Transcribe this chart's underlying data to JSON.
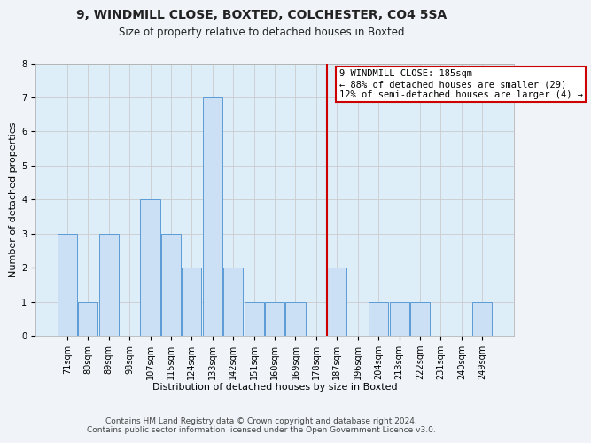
{
  "title": "9, WINDMILL CLOSE, BOXTED, COLCHESTER, CO4 5SA",
  "subtitle": "Size of property relative to detached houses in Boxted",
  "xlabel": "Distribution of detached houses by size in Boxted",
  "ylabel": "Number of detached properties",
  "bar_labels": [
    "71sqm",
    "80sqm",
    "89sqm",
    "98sqm",
    "107sqm",
    "115sqm",
    "124sqm",
    "133sqm",
    "142sqm",
    "151sqm",
    "160sqm",
    "169sqm",
    "178sqm",
    "187sqm",
    "196sqm",
    "204sqm",
    "213sqm",
    "222sqm",
    "231sqm",
    "240sqm",
    "249sqm"
  ],
  "bar_values": [
    3,
    1,
    3,
    0,
    4,
    3,
    2,
    7,
    2,
    1,
    1,
    1,
    0,
    2,
    0,
    1,
    1,
    1,
    0,
    0,
    1
  ],
  "bar_color": "#cce0f5",
  "bar_edge_color": "#5b9bd5",
  "vline_color": "#cc0000",
  "vline_pos": 12.5,
  "annotation_box_text": "9 WINDMILL CLOSE: 185sqm\n← 88% of detached houses are smaller (29)\n12% of semi-detached houses are larger (4) →",
  "annotation_box_color": "#cc0000",
  "annotation_box_fill": "#ffffff",
  "ylim": [
    0,
    8
  ],
  "yticks": [
    0,
    1,
    2,
    3,
    4,
    5,
    6,
    7,
    8
  ],
  "footer_line1": "Contains HM Land Registry data © Crown copyright and database right 2024.",
  "footer_line2": "Contains public sector information licensed under the Open Government Licence v3.0.",
  "grid_color": "#cccccc",
  "bg_color": "#ddeef8",
  "fig_bg_color": "#f0f4f8",
  "title_fontsize": 10,
  "subtitle_fontsize": 8.5,
  "axis_label_fontsize": 8,
  "tick_fontsize": 7,
  "footer_fontsize": 6.5,
  "annot_fontsize": 7.5
}
